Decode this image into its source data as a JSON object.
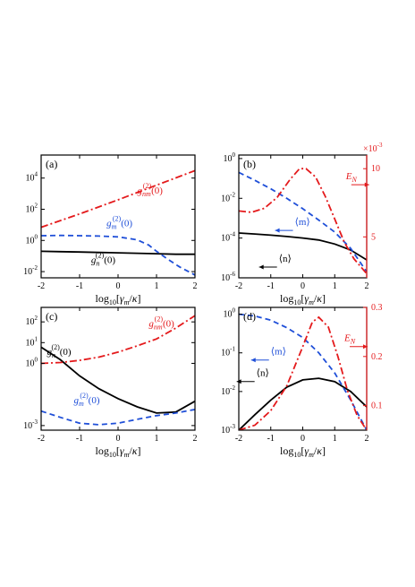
{
  "colors": {
    "black": "#000000",
    "blue": "#1f4fd8",
    "red": "#e41a1c"
  },
  "xlabel": "log10[γm/κ]",
  "xlabel_parts": {
    "base": "log",
    "sub10": "10",
    "open": "[",
    "gamma": "γ",
    "sub_m": "m",
    "slash": "/",
    "kappa": "κ",
    "close": "]"
  },
  "chart_data": [
    {
      "id": "a",
      "tag": "(a)",
      "type": "line",
      "ylog": true,
      "xlim": [
        -2,
        2
      ],
      "ylim": [
        0.004,
        300000
      ],
      "xticks": [
        -2,
        -1,
        0,
        1,
        2
      ],
      "yticks": [
        {
          "v": 0.01,
          "e": "-2"
        },
        {
          "v": 1,
          "e": "0"
        },
        {
          "v": 100,
          "e": "2"
        },
        {
          "v": 10000,
          "e": "4"
        }
      ],
      "series": [
        {
          "name": "g_n^(2)(0)",
          "color": "black",
          "style": "solid",
          "x": [
            -2,
            -1.5,
            -1,
            -0.5,
            0,
            0.5,
            1,
            1.5,
            2
          ],
          "y": [
            0.2,
            0.19,
            0.18,
            0.17,
            0.16,
            0.15,
            0.14,
            0.13,
            0.13
          ]
        },
        {
          "name": "g_m^(2)(0)",
          "color": "blue",
          "style": "dashed",
          "x": [
            -2,
            -1.5,
            -1,
            -0.5,
            0,
            0.5,
            0.8,
            1,
            1.3,
            1.6,
            2
          ],
          "y": [
            2,
            2.1,
            2.0,
            1.9,
            1.7,
            1.1,
            0.5,
            0.2,
            0.06,
            0.02,
            0.006
          ]
        },
        {
          "name": "g_nm^(2)(0)",
          "color": "red",
          "style": "dashdot",
          "x": [
            -2,
            -1,
            0,
            1,
            2
          ],
          "y": [
            7,
            50,
            400,
            3500,
            30000
          ]
        }
      ],
      "labels": [
        {
          "series": "g_nm^(2)(0)",
          "color": "red",
          "sym": "g",
          "sub": "nm",
          "sup": "(2)",
          "arg": "(0)",
          "at": [
            0.5,
            1000
          ]
        },
        {
          "series": "g_m^(2)(0)",
          "color": "blue",
          "sym": "g",
          "sub": "m",
          "sup": "(2)",
          "arg": "(0)",
          "at": [
            -0.3,
            8
          ]
        },
        {
          "series": "g_n^(2)(0)",
          "color": "black",
          "sym": "g",
          "sub": "n",
          "sup": "(2)",
          "arg": "(0)",
          "at": [
            -0.7,
            0.035
          ]
        }
      ]
    },
    {
      "id": "b",
      "tag": "(b)",
      "type": "line",
      "ylog": true,
      "xlim": [
        -2,
        2
      ],
      "ylim": [
        1e-06,
        1.5
      ],
      "xticks": [
        -2,
        -1,
        0,
        1,
        2
      ],
      "yticks": [
        {
          "v": 1e-06,
          "e": "-6"
        },
        {
          "v": 0.0001,
          "e": "-4"
        },
        {
          "v": 0.01,
          "e": "-2"
        },
        {
          "v": 1,
          "e": "0"
        }
      ],
      "y2lim": [
        2,
        11
      ],
      "y2ticks": [
        5,
        10
      ],
      "y2_multiplier": "×10",
      "y2_multiplier_exp": "-3",
      "series": [
        {
          "name": "⟨n⟩",
          "color": "black",
          "style": "solid",
          "axis": "left",
          "x": [
            -2,
            -1.5,
            -1,
            -0.5,
            0,
            0.5,
            1,
            1.5,
            2
          ],
          "y": [
            0.00018,
            0.00016,
            0.00014,
            0.00012,
            0.0001,
            8e-05,
            5e-05,
            2.5e-05,
            8e-06
          ]
        },
        {
          "name": "⟨m⟩",
          "color": "blue",
          "style": "dashed",
          "axis": "left",
          "x": [
            -2,
            -1.5,
            -1,
            -0.5,
            0,
            0.5,
            1,
            1.5,
            2
          ],
          "y": [
            0.2,
            0.08,
            0.03,
            0.01,
            0.003,
            0.0008,
            0.0002,
            3e-05,
            2e-06
          ]
        },
        {
          "name": "E_N",
          "color": "red",
          "style": "dashdot",
          "axis": "right",
          "x": [
            -2,
            -1.6,
            -1.2,
            -0.8,
            -0.4,
            -0.1,
            0.1,
            0.4,
            0.7,
            1.0,
            1.3,
            1.6,
            2.0
          ],
          "y": [
            6.9,
            6.8,
            7.1,
            7.9,
            9.2,
            10.0,
            10.0,
            9.4,
            8.0,
            6.3,
            4.6,
            3.4,
            2.3
          ]
        }
      ],
      "labels": [
        {
          "series": "E_N",
          "color": "red",
          "sym": "E",
          "sub": "N",
          "at": [
            1.35,
            0.09
          ]
        },
        {
          "series": "⟨m⟩",
          "color": "blue",
          "text": "⟨m⟩",
          "at": [
            -0.25,
            0.00045
          ]
        },
        {
          "series": "⟨n⟩",
          "color": "black",
          "text": "⟨n⟩",
          "at": [
            -0.75,
            6.5e-06
          ]
        }
      ]
    },
    {
      "id": "c",
      "tag": "(c)",
      "type": "line",
      "ylog": true,
      "xlim": [
        -2,
        2
      ],
      "ylim": [
        0.0006,
        500
      ],
      "xticks": [
        -2,
        -1,
        0,
        1,
        2
      ],
      "yticks": [
        {
          "v": 0.001,
          "e": "-3"
        },
        {
          "v": 1,
          "e": "0"
        },
        {
          "v": 10,
          "e": "1"
        },
        {
          "v": 100,
          "e": "2"
        }
      ],
      "series": [
        {
          "name": "g_n^(2)(0)",
          "color": "black",
          "style": "solid",
          "x": [
            -2,
            -1.5,
            -1,
            -0.5,
            0,
            0.5,
            1,
            1.5,
            2
          ],
          "y": [
            6,
            1.5,
            0.25,
            0.06,
            0.02,
            0.008,
            0.004,
            0.0045,
            0.015
          ]
        },
        {
          "name": "g_m^(2)(0)",
          "color": "blue",
          "style": "dashed",
          "x": [
            -2,
            -1.5,
            -1,
            -0.5,
            0,
            0.5,
            1,
            1.5,
            2
          ],
          "y": [
            0.005,
            0.0025,
            0.0013,
            0.0011,
            0.0013,
            0.002,
            0.003,
            0.004,
            0.006
          ]
        },
        {
          "name": "g_nm^(2)(0)",
          "color": "red",
          "style": "dashdot",
          "x": [
            -2,
            -1.5,
            -1,
            -0.5,
            0,
            0.5,
            1,
            1.5,
            2
          ],
          "y": [
            1.0,
            1.1,
            1.4,
            2.0,
            3.5,
            7,
            15,
            50,
            200
          ]
        }
      ],
      "labels": [
        {
          "series": "g_nm^(2)(0)",
          "color": "red",
          "sym": "g",
          "sub": "nm",
          "sup": "(2)",
          "arg": "(0)",
          "at": [
            0.8,
            60
          ]
        },
        {
          "series": "g_n^(2)(0)",
          "color": "black",
          "sym": "g",
          "sub": "n",
          "sup": "(2)",
          "arg": "(0)",
          "at": [
            -1.85,
            2.5
          ]
        },
        {
          "series": "g_m^(2)(0)",
          "color": "blue",
          "sym": "g",
          "sub": "m",
          "sup": "(2)",
          "arg": "(0)",
          "at": [
            -1.15,
            0.012
          ]
        }
      ]
    },
    {
      "id": "d",
      "tag": "(d)",
      "type": "line",
      "ylog": true,
      "xlim": [
        -2,
        2
      ],
      "ylim": [
        0.001,
        1.5
      ],
      "xticks": [
        -2,
        -1,
        0,
        1,
        2
      ],
      "yticks": [
        {
          "v": 0.001,
          "e": "-3"
        },
        {
          "v": 0.01,
          "e": "-2"
        },
        {
          "v": 0.1,
          "e": "-1"
        },
        {
          "v": 1,
          "e": "0"
        }
      ],
      "y2lim": [
        0.05,
        0.3
      ],
      "y2ticks": [
        0.1,
        0.2,
        0.3
      ],
      "series": [
        {
          "name": "⟨n⟩",
          "color": "black",
          "style": "solid",
          "axis": "left",
          "x": [
            -2,
            -1.5,
            -1,
            -0.5,
            0,
            0.5,
            1,
            1.5,
            2
          ],
          "y": [
            0.001,
            0.0025,
            0.006,
            0.013,
            0.02,
            0.022,
            0.018,
            0.01,
            0.004
          ]
        },
        {
          "name": "⟨m⟩",
          "color": "blue",
          "style": "dashed",
          "axis": "left",
          "x": [
            -2,
            -1.5,
            -1,
            -0.5,
            0,
            0.5,
            1,
            1.5,
            2
          ],
          "y": [
            1.0,
            0.9,
            0.7,
            0.45,
            0.25,
            0.1,
            0.03,
            0.006,
            0.001
          ]
        },
        {
          "name": "E_N",
          "color": "red",
          "style": "dashdot",
          "axis": "right",
          "x": [
            -2,
            -1.5,
            -1,
            -0.5,
            0,
            0.3,
            0.5,
            0.8,
            1.1,
            1.4,
            1.7,
            2
          ],
          "y": [
            0.05,
            0.06,
            0.09,
            0.14,
            0.22,
            0.27,
            0.28,
            0.26,
            0.2,
            0.13,
            0.08,
            0.05
          ]
        }
      ],
      "labels": [
        {
          "series": "E_N",
          "color": "red",
          "sym": "E",
          "sub": "N",
          "at": [
            1.3,
            0.2
          ]
        },
        {
          "series": "⟨m⟩",
          "color": "blue",
          "text": "⟨m⟩",
          "at": [
            -1.0,
            0.09
          ]
        },
        {
          "series": "⟨n⟩",
          "color": "black",
          "text": "⟨n⟩",
          "at": [
            -1.45,
            0.025
          ]
        }
      ]
    }
  ]
}
